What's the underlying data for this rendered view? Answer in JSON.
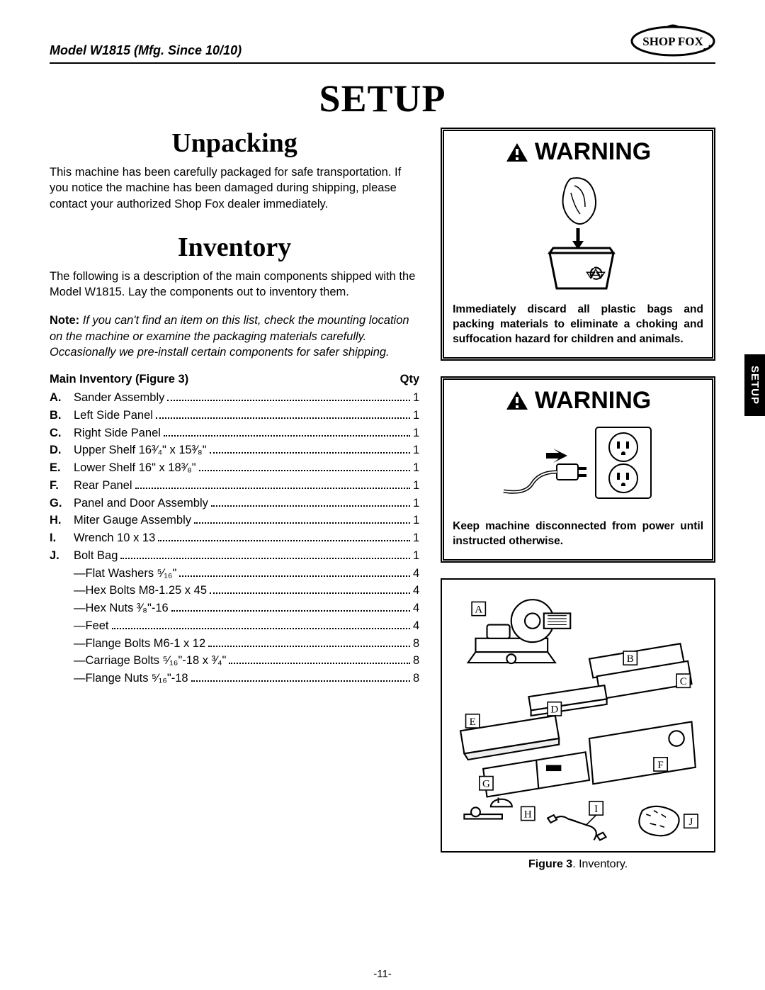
{
  "header": {
    "model_text": "Model W1815 (Mfg. Since 10/10)",
    "brand": "SHOP FOX"
  },
  "title": "SETUP",
  "side_tab": "SETUP",
  "page_number": "-11-",
  "unpacking": {
    "heading": "Unpacking",
    "text": "This machine has been carefully packaged for safe transportation. If you notice the machine has been damaged during shipping, please contact your authorized Shop Fox dealer immediately."
  },
  "inventory": {
    "heading": "Inventory",
    "intro": "The following is a description of the main components shipped with the Model W1815. Lay the components out to inventory them.",
    "note_label": "Note:",
    "note_body": " If you can't find an item on this list, check the mounting location on the machine or examine the packaging materials carefully. Occasionally we pre-install certain components for safer shipping.",
    "table_header_left": "Main Inventory (Figure 3)",
    "table_header_right": "Qty",
    "items": [
      {
        "letter": "A.",
        "name": "Sander Assembly",
        "qty": "1",
        "sub": false
      },
      {
        "letter": "B.",
        "name": "Left Side Panel",
        "qty": "1",
        "sub": false
      },
      {
        "letter": "C.",
        "name": "Right Side Panel",
        "qty": "1",
        "sub": false
      },
      {
        "letter": "D.",
        "name": "Upper Shelf  16³⁄₄\" x 15³⁄₈\"",
        "qty": "1",
        "sub": false
      },
      {
        "letter": "E.",
        "name": "Lower Shelf 16\" x 18³⁄₈\"",
        "qty": "1",
        "sub": false
      },
      {
        "letter": "F.",
        "name": "Rear Panel",
        "qty": "1",
        "sub": false
      },
      {
        "letter": "G.",
        "name": "Panel and Door Assembly",
        "qty": "1",
        "sub": false
      },
      {
        "letter": "H.",
        "name": "Miter Gauge Assembly",
        "qty": "1",
        "sub": false
      },
      {
        "letter": "I.",
        "name": "Wrench 10 x 13",
        "qty": "1",
        "sub": false
      },
      {
        "letter": "J.",
        "name": "Bolt Bag",
        "qty": "1",
        "sub": false
      },
      {
        "letter": "",
        "name": "Flat Washers ⁵⁄₁₆\"",
        "qty": "4",
        "sub": true
      },
      {
        "letter": "",
        "name": "Hex Bolts M8-1.25 x 45",
        "qty": "4",
        "sub": true
      },
      {
        "letter": "",
        "name": "Hex Nuts ³⁄₈\"-16",
        "qty": "4",
        "sub": true
      },
      {
        "letter": "",
        "name": "Feet",
        "qty": "4",
        "sub": true
      },
      {
        "letter": "",
        "name": "Flange Bolts M6-1 x 12",
        "qty": "8",
        "sub": true
      },
      {
        "letter": "",
        "name": "Carriage Bolts ⁵⁄₁₆\"-18 x ³⁄₄\"",
        "qty": "8",
        "sub": true
      },
      {
        "letter": "",
        "name": "Flange Nuts ⁵⁄₁₆\"-18",
        "qty": "8",
        "sub": true
      }
    ]
  },
  "warning1": {
    "title": "WARNING",
    "text": "Immediately discard all plastic bags and packing materials to eliminate a choking and suffocation hazard for children and animals."
  },
  "warning2": {
    "title": "WARNING",
    "text": "Keep machine disconnected from power until instructed otherwise."
  },
  "figure": {
    "label": "Figure 3",
    "caption": ". Inventory.",
    "callouts": [
      "A",
      "B",
      "C",
      "D",
      "E",
      "F",
      "G",
      "H",
      "I",
      "J"
    ]
  },
  "colors": {
    "text": "#000000",
    "background": "#ffffff",
    "tab_bg": "#000000",
    "tab_fg": "#ffffff"
  }
}
